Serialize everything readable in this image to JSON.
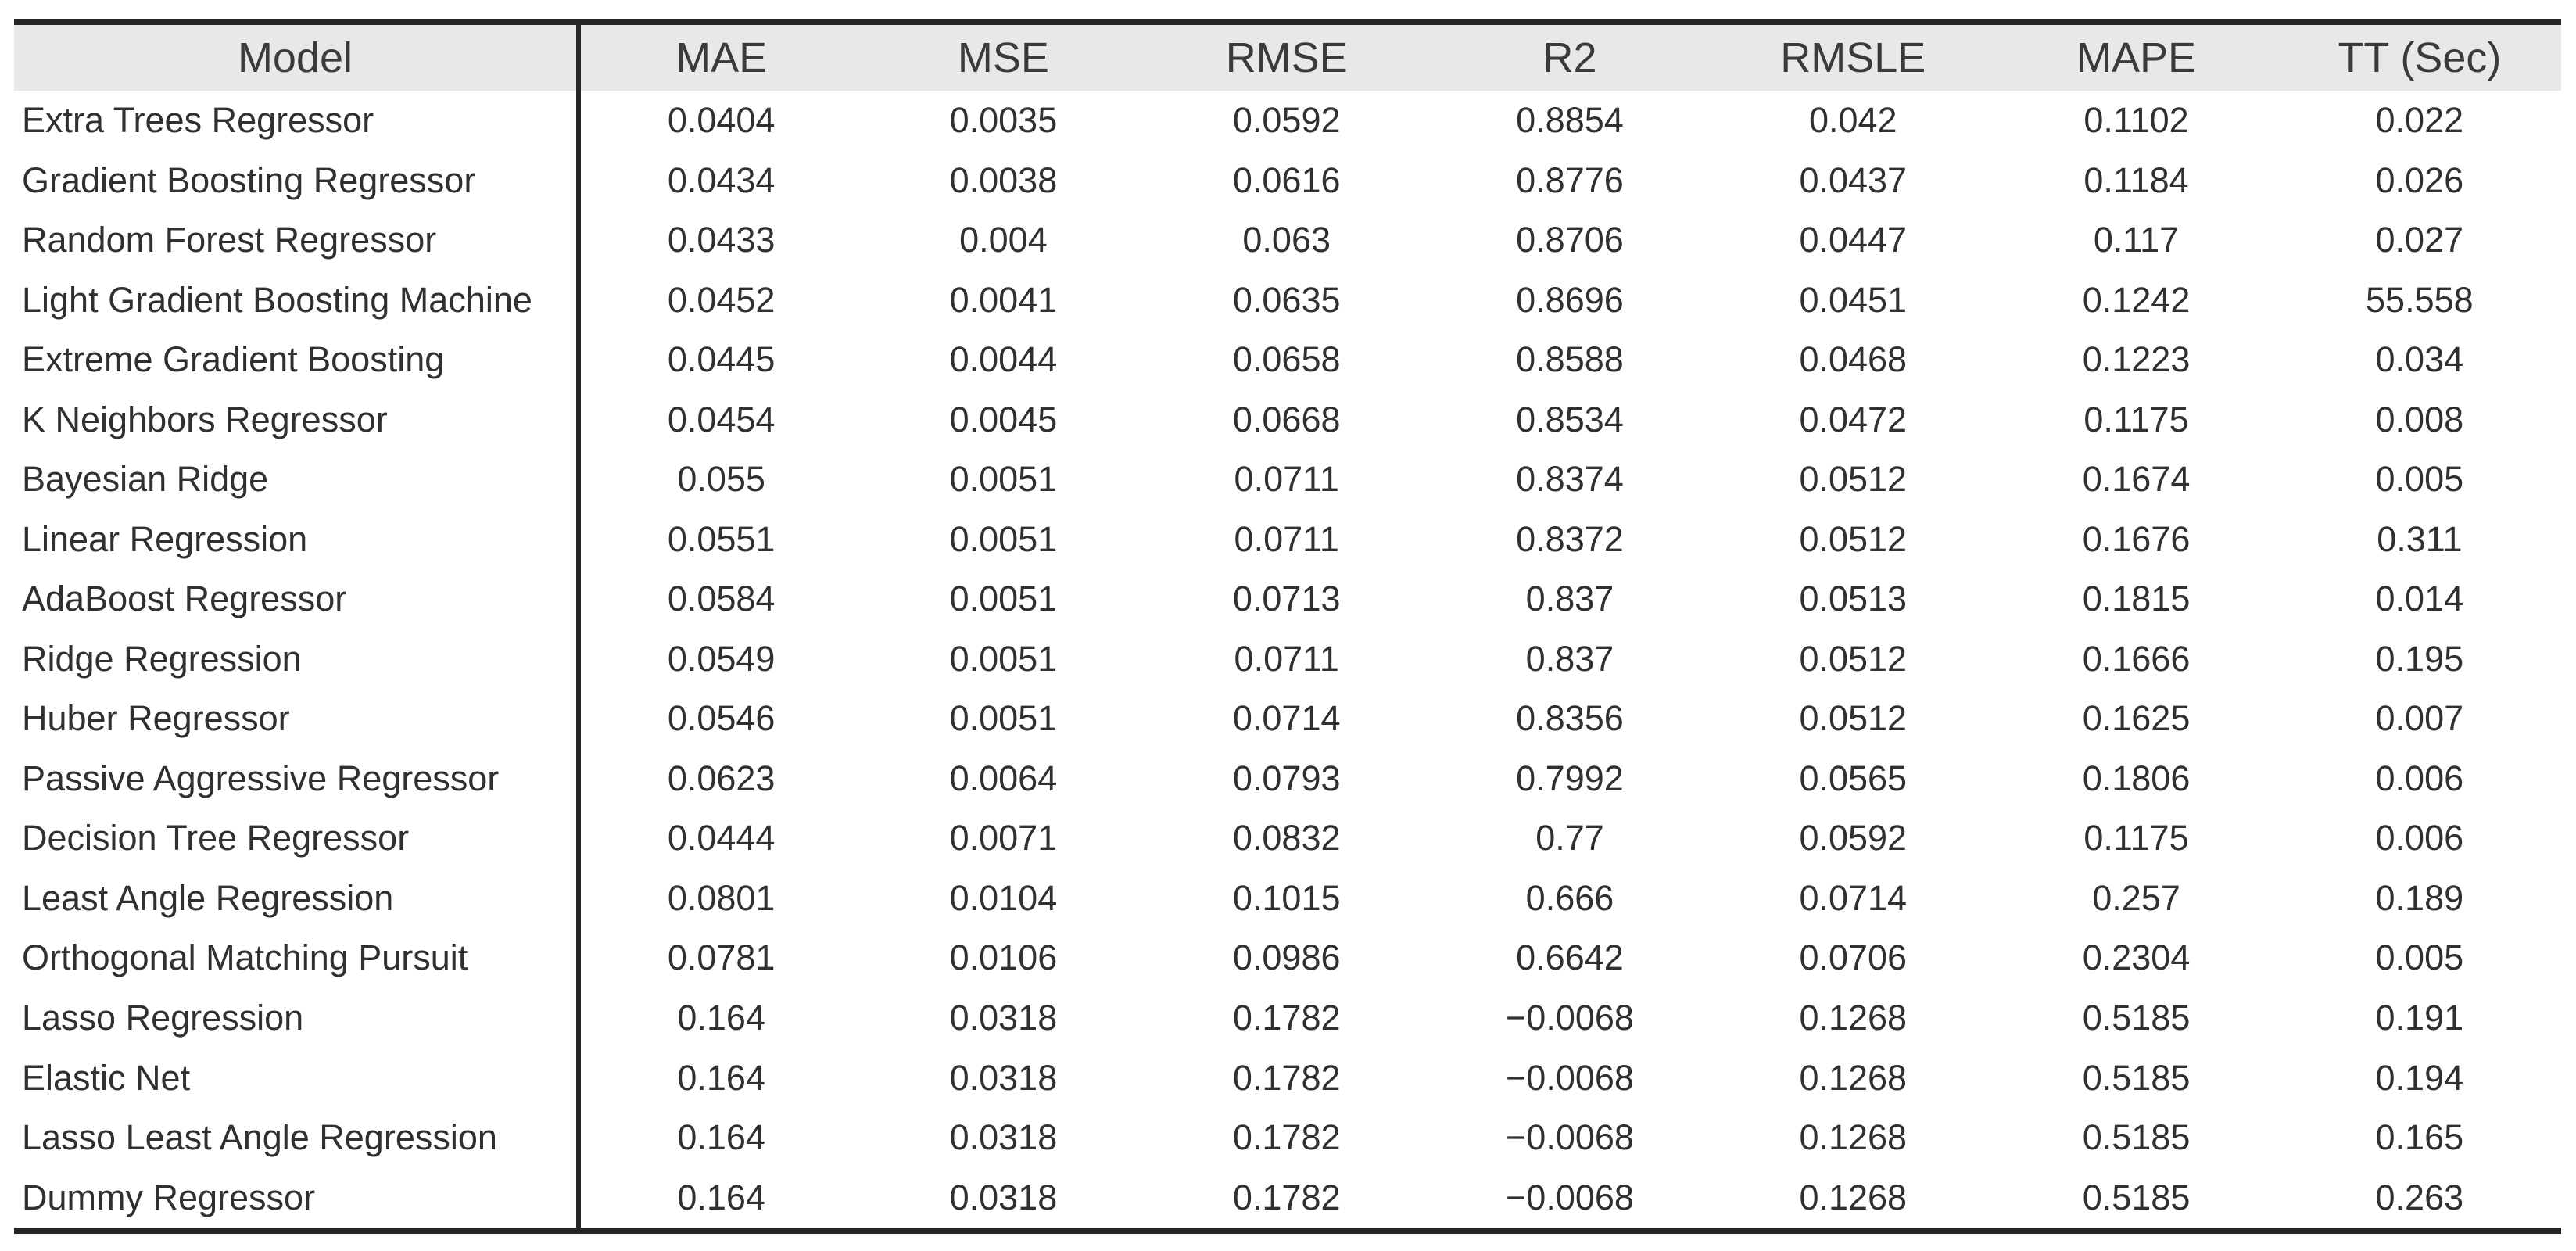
{
  "colors": {
    "header_bg": "#e8e8e8",
    "rule": "#262626",
    "text": "#303030",
    "header_text": "#3a3a3a"
  },
  "chart_data": {
    "type": "table",
    "columns": [
      "Model",
      "MAE",
      "MSE",
      "RMSE",
      "R2",
      "RMSLE",
      "MAPE",
      "TT (Sec)"
    ],
    "rows": [
      [
        "Extra Trees Regressor",
        "0.0404",
        "0.0035",
        "0.0592",
        "0.8854",
        "0.042",
        "0.1102",
        "0.022"
      ],
      [
        "Gradient Boosting Regressor",
        "0.0434",
        "0.0038",
        "0.0616",
        "0.8776",
        "0.0437",
        "0.1184",
        "0.026"
      ],
      [
        "Random Forest Regressor",
        "0.0433",
        "0.004",
        "0.063",
        "0.8706",
        "0.0447",
        "0.117",
        "0.027"
      ],
      [
        "Light Gradient Boosting Machine",
        "0.0452",
        "0.0041",
        "0.0635",
        "0.8696",
        "0.0451",
        "0.1242",
        "55.558"
      ],
      [
        "Extreme Gradient Boosting",
        "0.0445",
        "0.0044",
        "0.0658",
        "0.8588",
        "0.0468",
        "0.1223",
        "0.034"
      ],
      [
        "K Neighbors Regressor",
        "0.0454",
        "0.0045",
        "0.0668",
        "0.8534",
        "0.0472",
        "0.1175",
        "0.008"
      ],
      [
        "Bayesian Ridge",
        "0.055",
        "0.0051",
        "0.0711",
        "0.8374",
        "0.0512",
        "0.1674",
        "0.005"
      ],
      [
        "Linear Regression",
        "0.0551",
        "0.0051",
        "0.0711",
        "0.8372",
        "0.0512",
        "0.1676",
        "0.311"
      ],
      [
        "AdaBoost Regressor",
        "0.0584",
        "0.0051",
        "0.0713",
        "0.837",
        "0.0513",
        "0.1815",
        "0.014"
      ],
      [
        "Ridge Regression",
        "0.0549",
        "0.0051",
        "0.0711",
        "0.837",
        "0.0512",
        "0.1666",
        "0.195"
      ],
      [
        "Huber Regressor",
        "0.0546",
        "0.0051",
        "0.0714",
        "0.8356",
        "0.0512",
        "0.1625",
        "0.007"
      ],
      [
        "Passive Aggressive Regressor",
        "0.0623",
        "0.0064",
        "0.0793",
        "0.7992",
        "0.0565",
        "0.1806",
        "0.006"
      ],
      [
        "Decision Tree Regressor",
        "0.0444",
        "0.0071",
        "0.0832",
        "0.77",
        "0.0592",
        "0.1175",
        "0.006"
      ],
      [
        "Least Angle Regression",
        "0.0801",
        "0.0104",
        "0.1015",
        "0.666",
        "0.0714",
        "0.257",
        "0.189"
      ],
      [
        "Orthogonal Matching Pursuit",
        "0.0781",
        "0.0106",
        "0.0986",
        "0.6642",
        "0.0706",
        "0.2304",
        "0.005"
      ],
      [
        "Lasso Regression",
        "0.164",
        "0.0318",
        "0.1782",
        "−0.0068",
        "0.1268",
        "0.5185",
        "0.191"
      ],
      [
        "Elastic Net",
        "0.164",
        "0.0318",
        "0.1782",
        "−0.0068",
        "0.1268",
        "0.5185",
        "0.194"
      ],
      [
        "Lasso Least Angle Regression",
        "0.164",
        "0.0318",
        "0.1782",
        "−0.0068",
        "0.1268",
        "0.5185",
        "0.165"
      ],
      [
        "Dummy Regressor",
        "0.164",
        "0.0318",
        "0.1782",
        "−0.0068",
        "0.1268",
        "0.5185",
        "0.263"
      ]
    ]
  }
}
